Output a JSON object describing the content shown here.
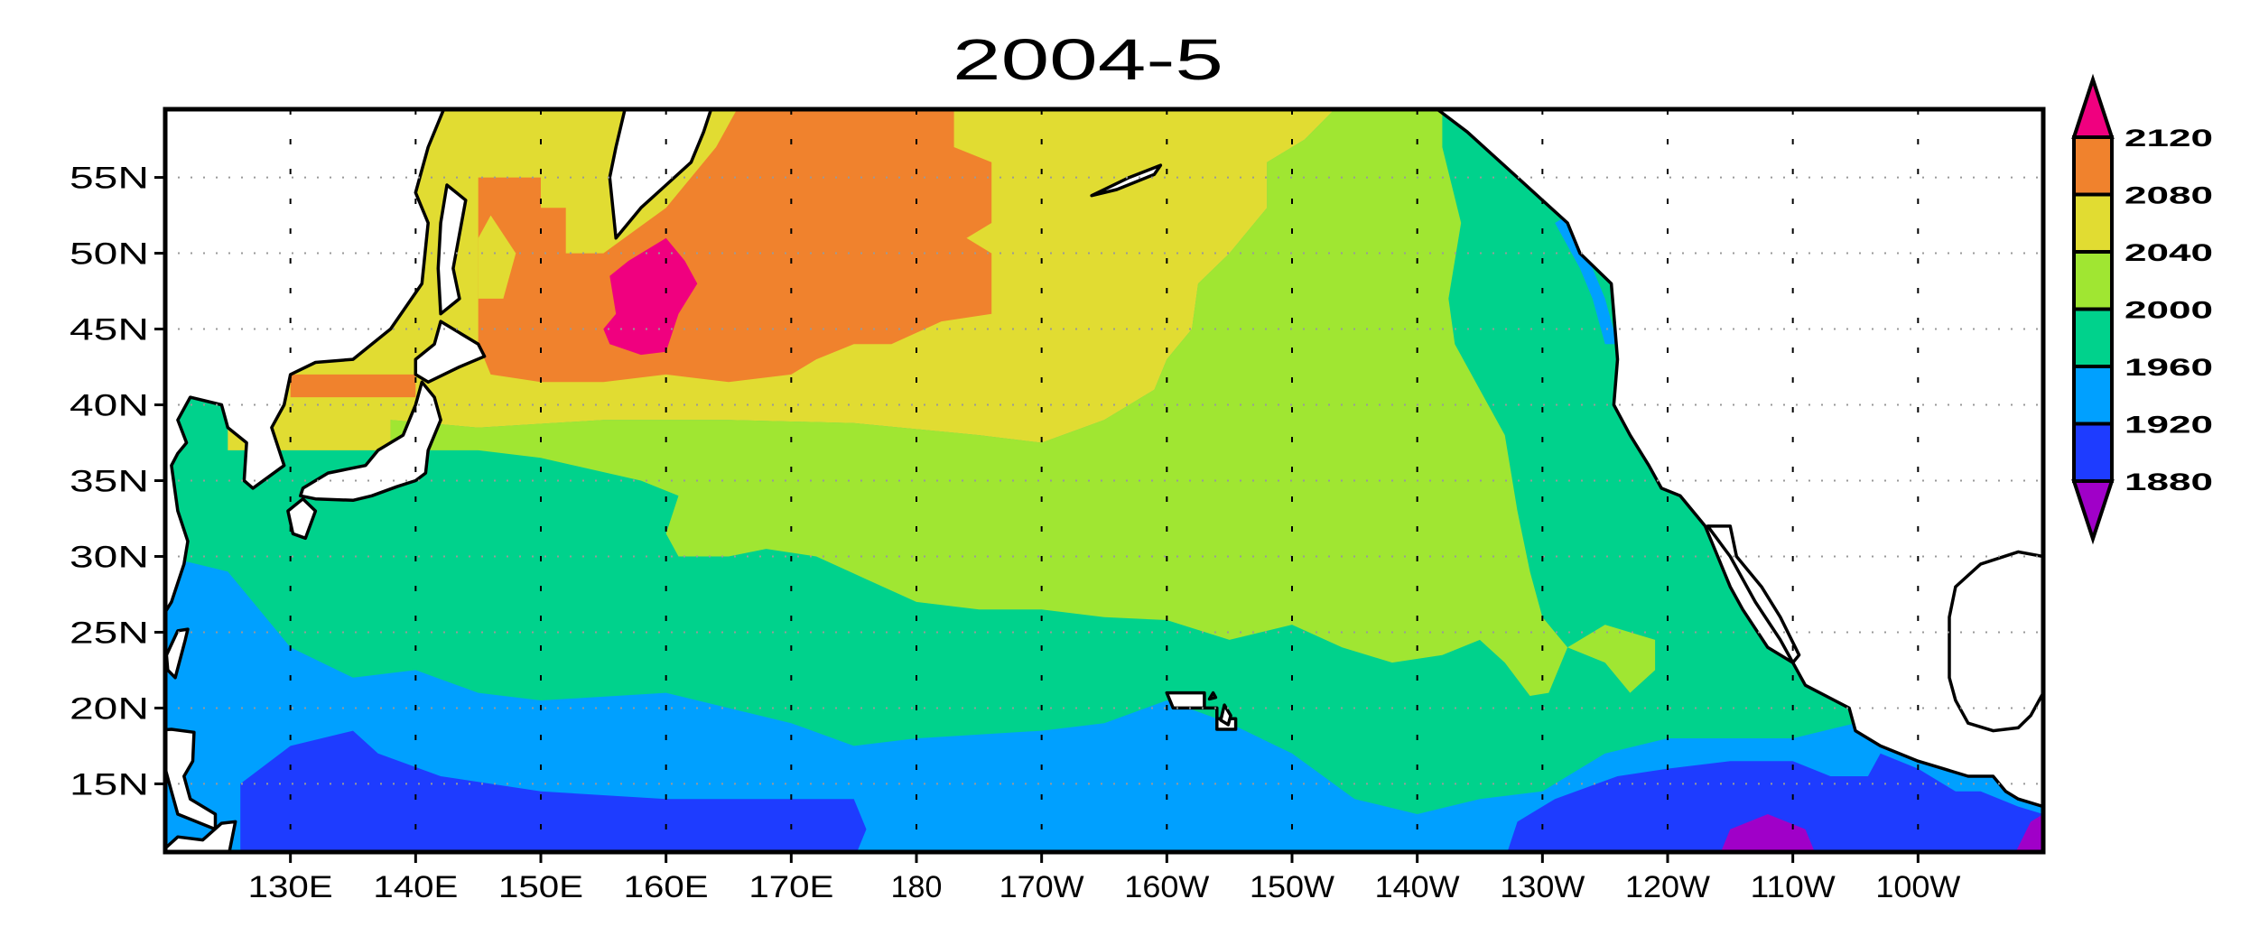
{
  "title": "2004-5",
  "map": {
    "projection": "cylindrical equidistant",
    "lon_range_degE": [
      120,
      270
    ],
    "lat_range_degN": [
      10.5,
      59.5
    ],
    "grid": true,
    "lat_ticks": [
      {
        "value": 15,
        "label": "15N"
      },
      {
        "value": 20,
        "label": "20N"
      },
      {
        "value": 25,
        "label": "25N"
      },
      {
        "value": 30,
        "label": "30N"
      },
      {
        "value": 35,
        "label": "35N"
      },
      {
        "value": 40,
        "label": "40N"
      },
      {
        "value": 45,
        "label": "45N"
      },
      {
        "value": 50,
        "label": "50N"
      },
      {
        "value": 55,
        "label": "55N"
      }
    ],
    "lon_ticks": [
      {
        "value": 130,
        "label": "130E"
      },
      {
        "value": 140,
        "label": "140E"
      },
      {
        "value": 150,
        "label": "150E"
      },
      {
        "value": 160,
        "label": "160E"
      },
      {
        "value": 170,
        "label": "170E"
      },
      {
        "value": 180,
        "label": "180"
      },
      {
        "value": 190,
        "label": "170W"
      },
      {
        "value": 200,
        "label": "160W"
      },
      {
        "value": 210,
        "label": "150W"
      },
      {
        "value": 220,
        "label": "140W"
      },
      {
        "value": 230,
        "label": "130W"
      },
      {
        "value": 240,
        "label": "120W"
      },
      {
        "value": 250,
        "label": "110W"
      },
      {
        "value": 260,
        "label": "100W"
      }
    ]
  },
  "colorbar": {
    "levels": [
      "1880",
      "1920",
      "1960",
      "2000",
      "2040",
      "2080",
      "2120"
    ],
    "colors": [
      "#a000c8",
      "#1e3cff",
      "#00a0ff",
      "#00d28c",
      "#a0e632",
      "#e1dc32",
      "#f0822d",
      "#f0007f"
    ],
    "placement": "right"
  },
  "land_color": "#ffffff",
  "coastline_color": "#000000"
}
